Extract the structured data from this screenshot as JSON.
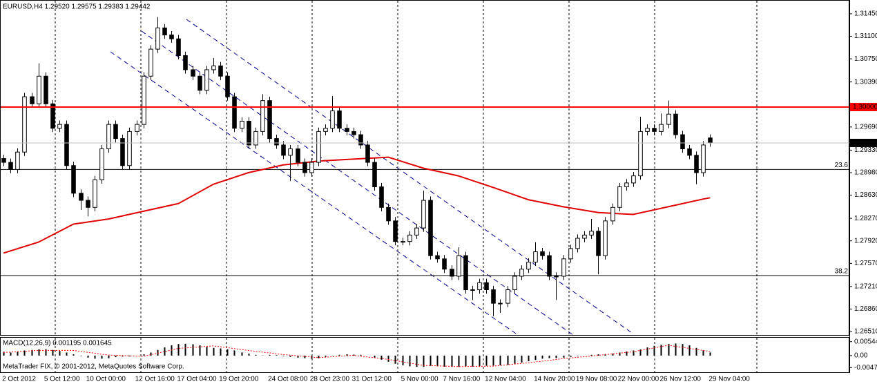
{
  "chart_data": [
    {
      "type": "candlestick",
      "title": "EURUSD,H4  1.29520 1.29575 1.29383 1.29442",
      "categories": [
        "2 Oct 2012",
        null,
        null,
        null,
        null,
        null,
        "5 Oct 12:00",
        null,
        null,
        null,
        null,
        null,
        "10 Oct 00:00",
        null,
        null,
        null,
        null,
        null,
        null,
        "12 Oct 16:00",
        null,
        null,
        null,
        null,
        null,
        "17 Oct 04:00",
        null,
        null,
        null,
        null,
        null,
        "19 Oct 20:00",
        null,
        null,
        null,
        null,
        null,
        null,
        "24 Oct 08:00",
        null,
        null,
        null,
        null,
        null,
        "28 Oct 23:00",
        null,
        null,
        null,
        null,
        null,
        "31 Oct 12:00",
        null,
        null,
        null,
        null,
        null,
        null,
        "5 Nov 00:00",
        null,
        null,
        null,
        null,
        null,
        "7 Nov 16:00",
        null,
        null,
        null,
        null,
        null,
        "12 Nov 04:00",
        null,
        null,
        null,
        null,
        null,
        null,
        "14 Nov 20:00",
        null,
        null,
        null,
        null,
        null,
        "19 Nov 08:00",
        null,
        null,
        null,
        null,
        null,
        "22 Nov 00:00",
        null,
        null,
        null,
        null,
        null,
        "26 Nov 12:00",
        null,
        null,
        null,
        null,
        null,
        null,
        "29 Nov 04:00"
      ],
      "open": [
        1.292,
        1.2914,
        1.2903,
        1.293,
        1.3016,
        1.3005,
        1.3048,
        1.3005,
        1.2967,
        1.2973,
        1.2909,
        1.2866,
        1.2855,
        1.2844,
        1.2887,
        1.2935,
        1.2973,
        1.2951,
        1.2909,
        1.2962,
        1.2973,
        1.3048,
        1.309,
        1.3123,
        1.3112,
        1.3106,
        1.308,
        1.3058,
        1.3048,
        1.3026,
        1.3058,
        1.3064,
        1.3048,
        1.3016,
        1.2967,
        1.2978,
        1.2941,
        1.2962,
        1.301,
        1.2951,
        1.2941,
        1.2925,
        1.2935,
        1.2914,
        1.2898,
        1.2914,
        1.2962,
        1.2967,
        1.2994,
        1.2967,
        1.2962,
        1.2957,
        1.2941,
        1.2914,
        1.2876,
        1.2844,
        1.2823,
        1.2791,
        1.2791,
        1.2801,
        1.2812,
        1.2855,
        1.2769,
        1.2764,
        1.2748,
        1.2737,
        1.2769,
        1.2716,
        1.2716,
        1.2727,
        1.2716,
        1.2695,
        1.2695,
        1.2716,
        1.2737,
        1.2748,
        1.2759,
        1.2775,
        1.2769,
        1.2737,
        1.2737,
        1.2764,
        1.278,
        1.2796,
        1.2801,
        1.2807,
        1.2769,
        1.2823,
        1.2844,
        1.2876,
        1.2882,
        1.2893,
        1.2962,
        1.2967,
        1.2962,
        1.2973,
        1.2989,
        1.2957,
        1.2935,
        1.2925,
        1.2898,
        1.2952
      ],
      "high": [
        1.2926,
        1.292,
        1.2936,
        1.3022,
        1.3022,
        1.3068,
        1.3054,
        1.3011,
        1.2979,
        1.2979,
        1.2915,
        1.2872,
        1.2861,
        1.2893,
        1.2941,
        1.2979,
        1.2979,
        1.2957,
        1.2968,
        1.2979,
        1.3054,
        1.3096,
        1.314,
        1.3129,
        1.3118,
        1.3112,
        1.3086,
        1.3064,
        1.3054,
        1.3064,
        1.3076,
        1.307,
        1.3054,
        1.3022,
        1.2984,
        1.2984,
        1.2968,
        1.302,
        1.3016,
        1.2957,
        1.2947,
        1.2941,
        1.2941,
        1.292,
        1.292,
        1.2968,
        1.2973,
        1.3017,
        1.3,
        1.2973,
        1.2968,
        1.2963,
        1.2947,
        1.292,
        1.2882,
        1.285,
        1.2829,
        1.2797,
        1.2807,
        1.2818,
        1.287,
        1.2861,
        1.2775,
        1.277,
        1.2754,
        1.2782,
        1.2775,
        1.2722,
        1.2733,
        1.2733,
        1.2722,
        1.2701,
        1.2722,
        1.2743,
        1.2754,
        1.2765,
        1.279,
        1.2781,
        1.2775,
        1.2743,
        1.277,
        1.2786,
        1.2802,
        1.2807,
        1.2826,
        1.2813,
        1.2829,
        1.285,
        1.2882,
        1.2888,
        1.2899,
        1.2985,
        1.2973,
        1.2973,
        1.299,
        1.301,
        1.2995,
        1.2963,
        1.2941,
        1.2931,
        1.2947,
        1.29575
      ],
      "low": [
        1.2908,
        1.2897,
        1.2897,
        1.2924,
        1.2999,
        1.2999,
        1.2999,
        1.2961,
        1.2961,
        1.2903,
        1.286,
        1.284,
        1.283,
        1.2838,
        1.2881,
        1.2929,
        1.2945,
        1.2903,
        1.2903,
        1.2956,
        1.2967,
        1.3042,
        1.3084,
        1.3106,
        1.31,
        1.3074,
        1.3052,
        1.3042,
        1.302,
        1.302,
        1.3052,
        1.3042,
        1.301,
        1.2961,
        1.2961,
        1.2935,
        1.2935,
        1.2956,
        1.2945,
        1.2935,
        1.2919,
        1.2885,
        1.2908,
        1.2892,
        1.2892,
        1.2908,
        1.2956,
        1.2961,
        1.2961,
        1.2956,
        1.2951,
        1.2935,
        1.2908,
        1.287,
        1.2838,
        1.2817,
        1.2785,
        1.2785,
        1.2785,
        1.2795,
        1.2806,
        1.2763,
        1.2758,
        1.2742,
        1.2731,
        1.2731,
        1.271,
        1.27,
        1.271,
        1.271,
        1.2675,
        1.268,
        1.2689,
        1.271,
        1.2731,
        1.2742,
        1.2753,
        1.2763,
        1.2731,
        1.27,
        1.2731,
        1.2758,
        1.2774,
        1.279,
        1.2795,
        1.274,
        1.2763,
        1.2817,
        1.2838,
        1.287,
        1.2876,
        1.2887,
        1.2956,
        1.2956,
        1.2956,
        1.2967,
        1.2951,
        1.2929,
        1.2919,
        1.288,
        1.2892,
        1.29383
      ],
      "close": [
        1.2914,
        1.2903,
        1.293,
        1.3016,
        1.3005,
        1.3048,
        1.3005,
        1.2967,
        1.2973,
        1.2909,
        1.2866,
        1.2855,
        1.2844,
        1.2887,
        1.2935,
        1.2973,
        1.2951,
        1.2909,
        1.2962,
        1.2973,
        1.3048,
        1.309,
        1.3123,
        1.3112,
        1.3106,
        1.308,
        1.3058,
        1.3048,
        1.3026,
        1.3058,
        1.3064,
        1.3048,
        1.3016,
        1.2967,
        1.2978,
        1.2941,
        1.2962,
        1.301,
        1.2951,
        1.2941,
        1.2925,
        1.2935,
        1.2914,
        1.2898,
        1.2914,
        1.2962,
        1.2967,
        1.2994,
        1.2967,
        1.2962,
        1.2957,
        1.2941,
        1.2914,
        1.2876,
        1.2844,
        1.2823,
        1.2791,
        1.2791,
        1.2801,
        1.2812,
        1.2855,
        1.2769,
        1.2764,
        1.2748,
        1.2737,
        1.2769,
        1.2716,
        1.2716,
        1.2727,
        1.2716,
        1.2695,
        1.2695,
        1.2716,
        1.2737,
        1.2748,
        1.2759,
        1.2775,
        1.2769,
        1.2737,
        1.2737,
        1.2764,
        1.278,
        1.2796,
        1.2801,
        1.2807,
        1.2769,
        1.2823,
        1.2844,
        1.2876,
        1.2882,
        1.2893,
        1.2962,
        1.2967,
        1.2962,
        1.2973,
        1.2989,
        1.2957,
        1.2935,
        1.2925,
        1.2898,
        1.2941,
        1.29442
      ],
      "up_color": "#ffffff",
      "down_color": "#000000",
      "moving_average": {
        "color": "#e00000",
        "x": [
          0,
          5,
          10,
          15,
          20,
          25,
          30,
          35,
          40,
          45,
          50,
          55,
          60,
          65,
          70,
          75,
          80,
          85,
          90,
          95,
          100,
          101
        ],
        "values": [
          1.2773,
          1.279,
          1.2818,
          1.2826,
          1.2838,
          1.285,
          1.288,
          1.2898,
          1.291,
          1.2916,
          1.2919,
          1.2922,
          1.2905,
          1.2893,
          1.2875,
          1.2856,
          1.2845,
          1.2836,
          1.2833,
          1.2845,
          1.2857,
          1.2859
        ]
      },
      "xlim": [
        -0.5,
        120.9
      ],
      "ylim": [
        1.26457,
        1.31653
      ],
      "yticks": [
        {
          "value": 1.3145,
          "label": "1.31450"
        },
        {
          "value": 1.311,
          "label": "1.31100"
        },
        {
          "value": 1.3075,
          "label": "1.30750"
        },
        {
          "value": 1.3039,
          "label": "1.30390"
        },
        {
          "value": 1.2969,
          "label": "1.29690"
        },
        {
          "value": 1.2933,
          "label": "1.29330"
        },
        {
          "value": 1.2898,
          "label": "1.28980"
        },
        {
          "value": 1.2863,
          "label": "1.28630"
        },
        {
          "value": 1.2827,
          "label": "1.28270"
        },
        {
          "value": 1.2792,
          "label": "1.27920"
        },
        {
          "value": 1.2757,
          "label": "1.27570"
        },
        {
          "value": 1.2721,
          "label": "1.27210"
        },
        {
          "value": 1.2686,
          "label": "1.26860"
        },
        {
          "value": 1.2651,
          "label": "1.26510"
        }
      ],
      "levels": [
        {
          "value": 1.2903,
          "label": "23.6"
        },
        {
          "value": 1.2738,
          "label": "38.2"
        }
      ],
      "price_lines": [
        {
          "value": 1.3,
          "label": "1.30000",
          "color": "#ff0000"
        },
        {
          "value": 1.29442,
          "label": "1.29442",
          "color": "#000000"
        }
      ]
    },
    {
      "type": "macd",
      "title": "MACD(12,26,9) 0.001195 0.001645",
      "values": [
        0.0015,
        0.0012,
        0.0015,
        0.002,
        0.0022,
        0.0025,
        0.0025,
        0.0022,
        0.0018,
        0.0012,
        0.0005,
        -0.0002,
        -0.0008,
        -0.0012,
        -0.0012,
        -0.001,
        -0.0006,
        -0.0004,
        -0.0003,
        0.0,
        0.0005,
        0.0012,
        0.0022,
        0.0032,
        0.004,
        0.0045,
        0.0046,
        0.0044,
        0.004,
        0.0034,
        0.003,
        0.0028,
        0.0025,
        0.002,
        0.0012,
        0.0008,
        0.0003,
        0.0001,
        0.0003,
        0.0002,
        -0.0002,
        -0.0005,
        -0.0008,
        -0.001,
        -0.0012,
        -0.001,
        -0.0005,
        -0.0001,
        0.0003,
        0.0005,
        0.0004,
        0.0003,
        0.0,
        -0.0008,
        -0.0016,
        -0.0024,
        -0.0032,
        -0.0038,
        -0.0042,
        -0.0044,
        -0.0044,
        -0.004,
        -0.0042,
        -0.0043,
        -0.0044,
        -0.0044,
        -0.0042,
        -0.0043,
        -0.0042,
        -0.004,
        -0.0039,
        -0.0038,
        -0.0036,
        -0.0032,
        -0.0027,
        -0.0022,
        -0.0017,
        -0.0012,
        -0.001,
        -0.001,
        -0.0008,
        -0.0005,
        -0.0002,
        0.0,
        0.0003,
        0.0005,
        0.0006,
        0.0008,
        0.0012,
        0.0016,
        0.002,
        0.0024,
        0.0032,
        0.0038,
        0.0042,
        0.0045,
        0.0047,
        0.0045,
        0.004,
        0.003,
        0.002,
        0.0012
      ],
      "color": "#000000",
      "signal": {
        "color": "#ff0000",
        "x": [
          0,
          5,
          10,
          15,
          20,
          25,
          30,
          35,
          40,
          45,
          50,
          55,
          60,
          65,
          70,
          75,
          80,
          85,
          90,
          95,
          100,
          101
        ],
        "values": [
          0.0012,
          0.002,
          0.002,
          0.0002,
          -0.0003,
          0.0028,
          0.0038,
          0.002,
          0.0004,
          -0.0008,
          0.0001,
          -0.0015,
          -0.0038,
          -0.0043,
          -0.0041,
          -0.0028,
          -0.0012,
          0.0001,
          0.0015,
          0.004,
          0.002,
          0.0016
        ]
      },
      "ylim": [
        -0.0065,
        0.00697
      ],
      "yticks": [
        0.00544,
        {
          "value": 0,
          "label": "0.00"
        },
        -0.00472
      ],
      "footer": "MetaTrader FIX, © 2001-2012, MetaQuotes Software Corp."
    }
  ]
}
